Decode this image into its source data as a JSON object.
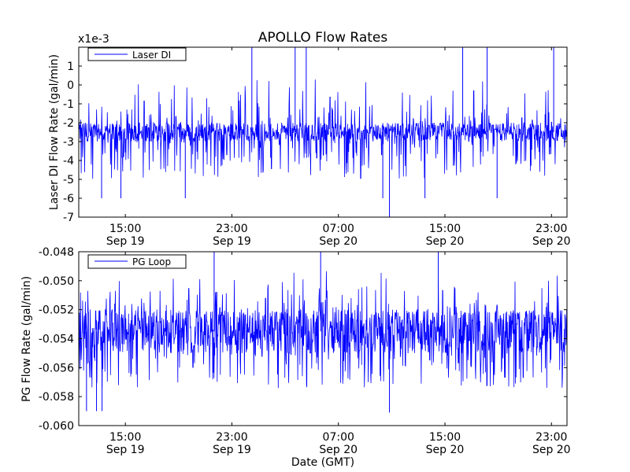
{
  "chart_data": [
    {
      "type": "line",
      "title": "APOLLO Flow Rates",
      "ylabel": "Laser DI Flow Rate (gal/min)",
      "xlabel": "",
      "offset_text": "x1e-3",
      "ylim": [
        -7,
        2
      ],
      "yticks": [
        1,
        0,
        -1,
        -2,
        -3,
        -4,
        -5,
        -6,
        -7
      ],
      "xlim": [
        "2015-09-19T11:30",
        "2015-09-21T00:10"
      ],
      "xticks": [
        {
          "x": "2015-09-19T15:00",
          "time": "15:00",
          "date": "Sep 19"
        },
        {
          "x": "2015-09-19T23:00",
          "time": "23:00",
          "date": "Sep 19"
        },
        {
          "x": "2015-09-20T07:00",
          "time": "07:00",
          "date": "Sep 20"
        },
        {
          "x": "2015-09-20T15:00",
          "time": "15:00",
          "date": "Sep 20"
        },
        {
          "x": "2015-09-20T23:00",
          "time": "23:00",
          "date": "Sep 20"
        }
      ],
      "legend": {
        "position": "top-left"
      },
      "series": [
        {
          "name": "Laser DI",
          "color": "#0000ff",
          "y_baseline_band": [
            -3,
            -2
          ],
          "y_observed_range": [
            -7,
            2
          ],
          "spikes": [
            {
              "x": "2015-09-19T13:13",
              "y": -6
            },
            {
              "x": "2015-09-19T14:40",
              "y": -6
            },
            {
              "x": "2015-09-19T19:30",
              "y": -6
            },
            {
              "x": "2015-09-20T00:30",
              "y": 2
            },
            {
              "x": "2015-09-20T03:45",
              "y": 2
            },
            {
              "x": "2015-09-20T04:35",
              "y": 2
            },
            {
              "x": "2015-09-20T10:20",
              "y": -6
            },
            {
              "x": "2015-09-20T10:50",
              "y": -7
            },
            {
              "x": "2015-09-20T13:30",
              "y": -6
            },
            {
              "x": "2015-09-20T16:20",
              "y": 2
            },
            {
              "x": "2015-09-20T18:10",
              "y": 2
            },
            {
              "x": "2015-09-20T18:55",
              "y": -6
            },
            {
              "x": "2015-09-20T23:10",
              "y": 2
            }
          ]
        }
      ]
    },
    {
      "type": "line",
      "title": "",
      "ylabel": "PG Flow Rate (gal/min)",
      "xlabel": "Date (GMT)",
      "ylim": [
        -0.06,
        -0.048
      ],
      "yticks": [
        "-0.048",
        "-0.050",
        "-0.052",
        "-0.054",
        "-0.056",
        "-0.058",
        "-0.060"
      ],
      "xlim": [
        "2015-09-19T11:30",
        "2015-09-21T00:10"
      ],
      "xticks": [
        {
          "x": "2015-09-19T15:00",
          "time": "15:00",
          "date": "Sep 19"
        },
        {
          "x": "2015-09-19T23:00",
          "time": "23:00",
          "date": "Sep 19"
        },
        {
          "x": "2015-09-20T07:00",
          "time": "07:00",
          "date": "Sep 20"
        },
        {
          "x": "2015-09-20T15:00",
          "time": "15:00",
          "date": "Sep 20"
        },
        {
          "x": "2015-09-20T23:00",
          "time": "23:00",
          "date": "Sep 20"
        }
      ],
      "legend": {
        "position": "top-left"
      },
      "series": [
        {
          "name": "PG Loop",
          "color": "#0000ff",
          "y_baseline_band": [
            -0.055,
            -0.052
          ],
          "y_observed_range": [
            -0.0591,
            -0.048
          ],
          "spikes": [
            {
              "x": "2015-09-19T12:05",
              "y": -0.059
            },
            {
              "x": "2015-09-19T12:50",
              "y": -0.059
            },
            {
              "x": "2015-09-19T13:15",
              "y": -0.059
            },
            {
              "x": "2015-09-19T21:40",
              "y": -0.048
            },
            {
              "x": "2015-09-20T05:40",
              "y": -0.048
            },
            {
              "x": "2015-09-20T10:50",
              "y": -0.0591
            },
            {
              "x": "2015-09-20T14:30",
              "y": -0.048
            }
          ]
        }
      ]
    }
  ]
}
